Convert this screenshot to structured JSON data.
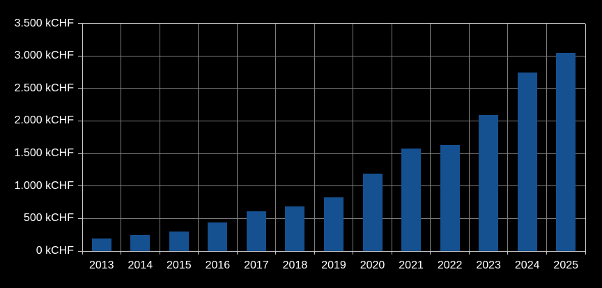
{
  "chart_data": {
    "type": "bar",
    "title": "",
    "unit": "kCHF",
    "categories": [
      "2013",
      "2014",
      "2015",
      "2016",
      "2017",
      "2018",
      "2019",
      "2020",
      "2021",
      "2022",
      "2023",
      "2024",
      "2025"
    ],
    "values": [
      190,
      245,
      295,
      435,
      610,
      685,
      825,
      1190,
      1580,
      1630,
      2090,
      2740,
      3040
    ],
    "ylim": [
      0,
      3500
    ],
    "ytick_step": 500,
    "ytick_values": [
      0,
      500,
      1000,
      1500,
      2000,
      2500,
      3000,
      3500
    ],
    "ytick_labels": [
      "0 kCHF",
      "500 kCHF",
      "1.000 kCHF",
      "1.500 kCHF",
      "2.000 kCHF",
      "2.500 kCHF",
      "3.000 kCHF",
      "3.500 kCHF"
    ],
    "xlabel": "",
    "ylabel": "",
    "grid": true,
    "legend": false,
    "colors": {
      "bar": "#155191",
      "background": "#000000",
      "gridline": "#7F7F7F",
      "axis": "#C8C8C8",
      "text": "#FFFFFF"
    }
  }
}
